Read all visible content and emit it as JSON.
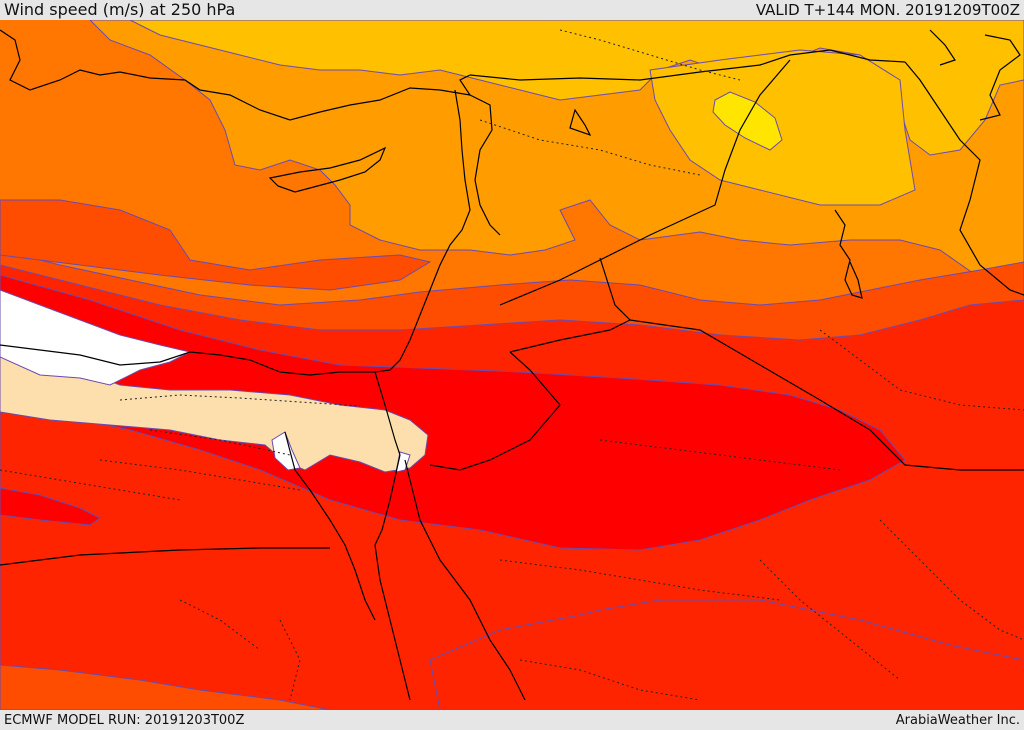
{
  "header": {
    "title": "Wind speed (m/s) at 250 hPa",
    "valid_time": "VALID T+144 MON. 20191209T00Z"
  },
  "footer": {
    "model_run": "ECMWF MODEL RUN: 20191203T00Z",
    "credit": "ArabiaWeather Inc."
  },
  "colors": {
    "band_gt_70": "#ffffff",
    "band_60_70": "#fcdfac",
    "band_50_60": "#fe0000",
    "band_45_50": "#fe2400",
    "band_40_45": "#fe4d00",
    "band_35_40": "#ff7600",
    "band_30_35": "#ff9d00",
    "band_25_30": "#ffc000",
    "band_20_25": "#ffe500",
    "contour_line": "#6a4bb0",
    "coastline": "#000000"
  }
}
